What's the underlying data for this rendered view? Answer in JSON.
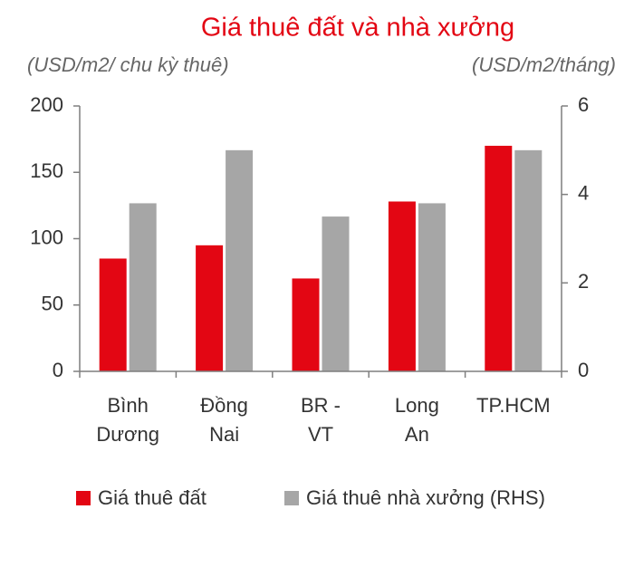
{
  "chart_data": {
    "type": "bar",
    "title": "Giá thuê đất và nhà xưởng",
    "y_label": "(USD/m2/ chu kỳ thuê)",
    "y2_label": "(USD/m2/tháng)",
    "categories": [
      "Bình\nDương",
      "Đồng\nNai",
      "BR -\nVT",
      "Long\nAn",
      "TP.HCM"
    ],
    "series": [
      {
        "name": "Giá thuê đất",
        "color": "#e30613",
        "values": [
          85,
          95,
          70,
          128,
          170
        ]
      },
      {
        "name": "Giá thuê nhà xưởng (RHS)",
        "color": "#a6a6a6",
        "values": [
          3.8,
          5.0,
          3.5,
          3.8,
          5.0
        ],
        "axis": "y2"
      }
    ],
    "ylim": [
      0,
      200
    ],
    "yticks": [
      0,
      50,
      100,
      150,
      200
    ],
    "y2lim": [
      0,
      6
    ],
    "y2ticks": [
      0,
      2,
      4,
      6
    ],
    "legend": "bottom"
  }
}
